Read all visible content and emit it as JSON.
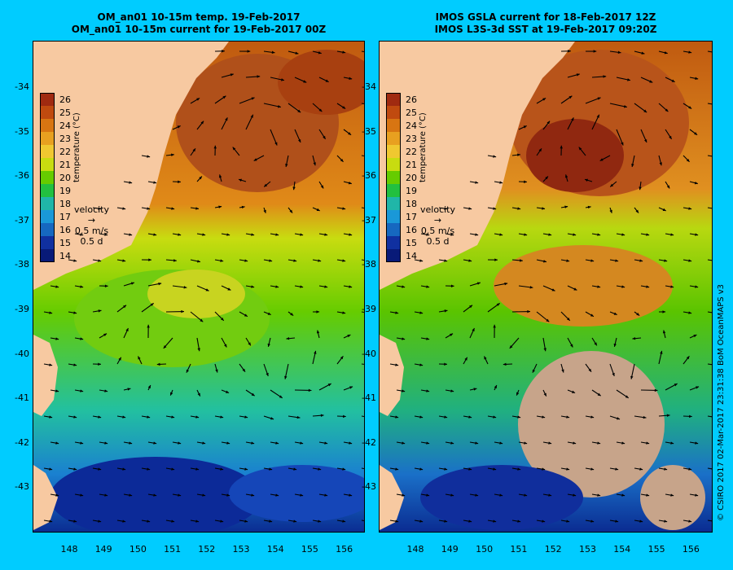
{
  "left_panel": {
    "title_line1": "OM_an01 10-15m temp. 19-Feb-2017",
    "title_line2": "OM_an01 10-15m current for 19-Feb-2017 00Z"
  },
  "right_panel": {
    "title_line1": "IMOS GSLA current for 18-Feb-2017 12Z",
    "title_line2": "IMOS L3S-3d SST at 19-Feb-2017 09:20Z"
  },
  "colorbar": {
    "label": "temperature (°C)",
    "ticks": [
      "26",
      "25",
      "24",
      "23",
      "22",
      "21",
      "20",
      "19",
      "18",
      "17",
      "16",
      "15",
      "14"
    ],
    "colors": [
      "#a02a10",
      "#c04a0f",
      "#d87512",
      "#e8a020",
      "#f0c830",
      "#c8dc10",
      "#66cc00",
      "#22c040",
      "#20b6a8",
      "#1a98d8",
      "#1668c0",
      "#1030a0",
      "#081a78"
    ]
  },
  "velocity_legend": {
    "title": "velocity",
    "speed": "0.5 m/s",
    "duration": "0.5 d"
  },
  "axes": {
    "latitudes": [
      "-34",
      "-35",
      "-36",
      "-37",
      "-38",
      "-39",
      "-40",
      "-41",
      "-42",
      "-43"
    ],
    "longitudes": [
      "148",
      "149",
      "150",
      "151",
      "152",
      "153",
      "154",
      "155",
      "156"
    ]
  },
  "credit": "© CSIRO 2017   02-Mar-2017 23:31:38 BoM OceanMAPS v3",
  "colors": {
    "background": "#00ccff",
    "land": "#f7c9a1",
    "missing_data": "#c7a48a"
  }
}
